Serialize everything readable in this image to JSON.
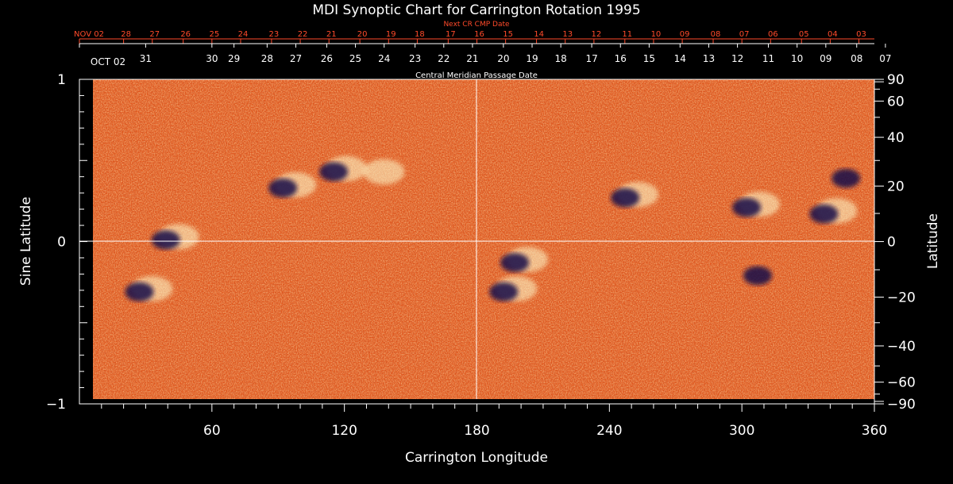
{
  "chart_data": {
    "type": "heatmap",
    "title": "MDI Synoptic Chart for Carrington Rotation 1995",
    "xlabel": "Carrington Longitude",
    "ylabel_left": "Sine Latitude",
    "ylabel_right": "Latitude",
    "top_axis_label": "Central Meridian Passage Date",
    "next_axis_label": "Next CR CMP Date",
    "xlim": [
      0,
      360
    ],
    "ylim": [
      -1,
      1
    ],
    "x_ticks": [
      60,
      120,
      180,
      240,
      300,
      360
    ],
    "y_ticks_left": [
      {
        "value": 1,
        "label": "1"
      },
      {
        "value": 0,
        "label": "0"
      },
      {
        "value": -1,
        "label": "−1"
      }
    ],
    "y_ticks_right": [
      90,
      60,
      40,
      20,
      0,
      -20,
      -40,
      -60,
      -90
    ],
    "y_tick_labels_right": [
      "90",
      "60",
      "40",
      "20",
      "0",
      "−20",
      "−40",
      "−60",
      "−90"
    ],
    "cmp_dates": [
      {
        "label": "OCT 02",
        "lon": 360
      },
      {
        "label": "31",
        "lon": 330
      },
      {
        "label": "30",
        "lon": 300
      },
      {
        "label": "29",
        "lon": 290
      },
      {
        "label": "28",
        "lon": 275
      },
      {
        "label": "27",
        "lon": 262
      },
      {
        "label": "26",
        "lon": 248
      },
      {
        "label": "25",
        "lon": 235
      },
      {
        "label": "24",
        "lon": 222
      },
      {
        "label": "23",
        "lon": 208
      },
      {
        "label": "22",
        "lon": 195
      },
      {
        "label": "21",
        "lon": 182
      },
      {
        "label": "20",
        "lon": 168
      },
      {
        "label": "19",
        "lon": 155
      },
      {
        "label": "18",
        "lon": 142
      },
      {
        "label": "17",
        "lon": 128
      },
      {
        "label": "16",
        "lon": 115
      },
      {
        "label": "15",
        "lon": 102
      },
      {
        "label": "14",
        "lon": 88
      },
      {
        "label": "13",
        "lon": 75
      },
      {
        "label": "12",
        "lon": 62
      },
      {
        "label": "11",
        "lon": 48
      },
      {
        "label": "10",
        "lon": 35
      },
      {
        "label": "09",
        "lon": 22
      },
      {
        "label": "08",
        "lon": 8
      },
      {
        "label": "07",
        "lon": -5
      }
    ],
    "next_cmp_dates": [
      {
        "label": "NOV 02",
        "lon": 360
      },
      {
        "label": "28",
        "lon": 340
      },
      {
        "label": "27",
        "lon": 327
      },
      {
        "label": "26",
        "lon": 313
      },
      {
        "label": "25",
        "lon": 300
      },
      {
        "label": "24",
        "lon": 287
      },
      {
        "label": "23",
        "lon": 273
      },
      {
        "label": "22",
        "lon": 260
      },
      {
        "label": "21",
        "lon": 247
      },
      {
        "label": "20",
        "lon": 233
      },
      {
        "label": "19",
        "lon": 220
      },
      {
        "label": "18",
        "lon": 207
      },
      {
        "label": "17",
        "lon": 193
      },
      {
        "label": "16",
        "lon": 180
      },
      {
        "label": "15",
        "lon": 167
      },
      {
        "label": "14",
        "lon": 153
      },
      {
        "label": "13",
        "lon": 140
      },
      {
        "label": "12",
        "lon": 127
      },
      {
        "label": "11",
        "lon": 113
      },
      {
        "label": "10",
        "lon": 100
      },
      {
        "label": "09",
        "lon": 87
      },
      {
        "label": "08",
        "lon": 73
      },
      {
        "label": "07",
        "lon": 60
      },
      {
        "label": "06",
        "lon": 47
      },
      {
        "label": "05",
        "lon": 33
      },
      {
        "label": "04",
        "lon": 20
      },
      {
        "label": "03",
        "lon": 7
      }
    ],
    "active_regions": [
      {
        "lon": 118,
        "sinlat": 0.44,
        "polarity": "mixed"
      },
      {
        "lon": 95,
        "sinlat": 0.34,
        "polarity": "mixed"
      },
      {
        "lon": 135,
        "sinlat": 0.42,
        "polarity": "positive"
      },
      {
        "lon": 42,
        "sinlat": 0.02,
        "polarity": "mixed"
      },
      {
        "lon": 30,
        "sinlat": -0.3,
        "polarity": "mixed"
      },
      {
        "lon": 195,
        "sinlat": -0.3,
        "polarity": "mixed"
      },
      {
        "lon": 200,
        "sinlat": -0.12,
        "polarity": "mixed"
      },
      {
        "lon": 250,
        "sinlat": 0.28,
        "polarity": "mixed"
      },
      {
        "lon": 305,
        "sinlat": 0.22,
        "polarity": "mixed"
      },
      {
        "lon": 340,
        "sinlat": 0.18,
        "polarity": "mixed"
      },
      {
        "lon": 310,
        "sinlat": -0.2,
        "polarity": "negative"
      },
      {
        "lon": 350,
        "sinlat": 0.4,
        "polarity": "negative"
      }
    ],
    "colors": {
      "background": "#000000",
      "map_base": "#e0561c",
      "positive": "#ffffd0",
      "negative": "#12104a",
      "axis": "#ffffff",
      "next_dates": "#ff4a2a"
    },
    "grid": false
  }
}
